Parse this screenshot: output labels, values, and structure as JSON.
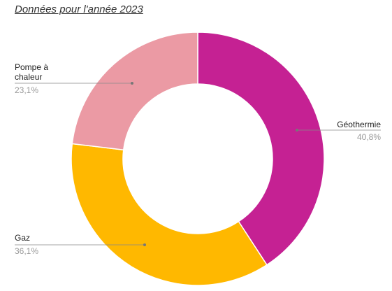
{
  "chart_data": {
    "type": "pie",
    "title": "Données pour l'année 2023",
    "donut": true,
    "slices": [
      {
        "label": "Géothermie",
        "value": 40.8,
        "value_label": "40,8%",
        "color": "#C52193"
      },
      {
        "label": "Gaz",
        "value": 36.1,
        "value_label": "36,1%",
        "color": "#FFB800"
      },
      {
        "label": "Pompe à chaleur",
        "label_lines": [
          "Pompe à",
          "chaleur"
        ],
        "value": 23.1,
        "value_label": "23,1%",
        "color": "#EB9AA4"
      }
    ]
  }
}
